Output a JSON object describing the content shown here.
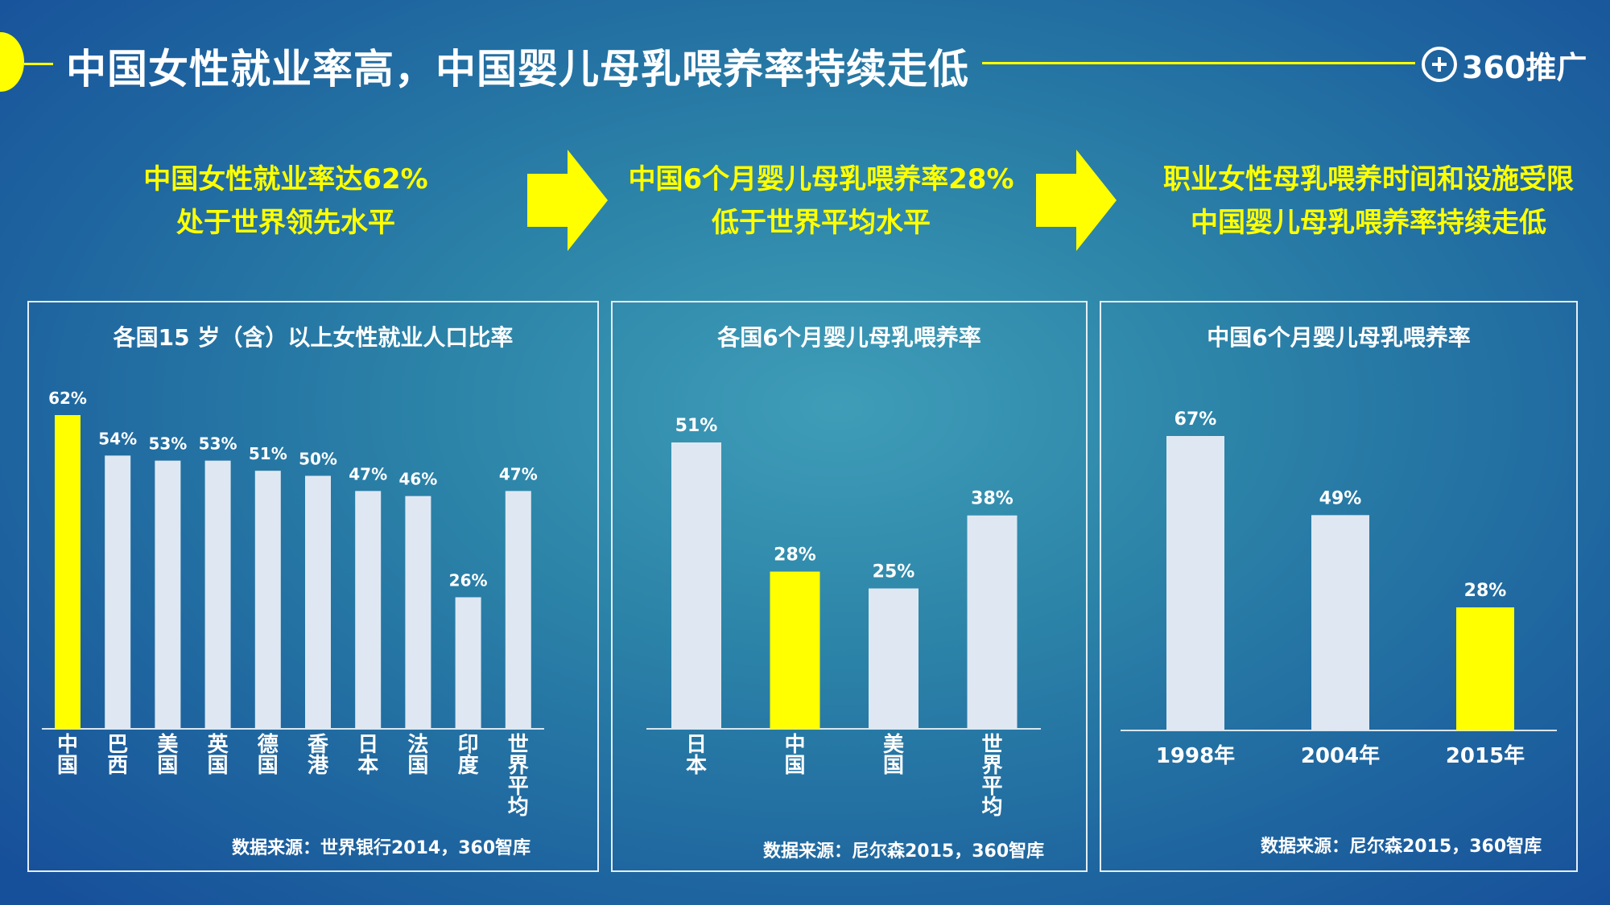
{
  "header": {
    "title": "中国女性就业率高，中国婴儿母乳喂养率持续走低",
    "logo_text": "360推广"
  },
  "highlights": [
    {
      "line1": "中国女性就业率达62%",
      "line2": "处于世界领先水平"
    },
    {
      "line1": "中国6个月婴儿母乳喂养率28%",
      "line2": "低于世界平均水平"
    },
    {
      "line1": "职业女性母乳喂养时间和设施受限",
      "line2": "中国婴儿母乳喂养率持续走低"
    }
  ],
  "colors": {
    "highlight": "#ffff00",
    "bar": "#dfe8f2",
    "accent_bar": "#ffff00",
    "axis": "#d8e6f0"
  },
  "panels": [
    {
      "source": "数据来源：世界银行2014，360智库"
    },
    {
      "source": "数据来源：尼尔森2015，360智库"
    },
    {
      "source": "数据来源：尼尔森2015，360智库"
    }
  ],
  "chart_data": [
    {
      "type": "bar",
      "title": "各国15 岁（含）以上女性就业人口比率",
      "categories": [
        "中国",
        "巴西",
        "美国",
        "英国",
        "德国",
        "香港",
        "日本",
        "法国",
        "印度",
        "世界平均"
      ],
      "values": [
        62,
        54,
        53,
        53,
        51,
        50,
        47,
        46,
        26,
        47
      ],
      "value_labels": [
        "62%",
        "54%",
        "53%",
        "53%",
        "51%",
        "50%",
        "47%",
        "46%",
        "26%",
        "47%"
      ],
      "highlight_index": 0,
      "ylim": [
        0,
        62
      ]
    },
    {
      "type": "bar",
      "title": "各国6个月婴儿母乳喂养率",
      "categories": [
        "日本",
        "中国",
        "美国",
        "世界平均"
      ],
      "values": [
        51,
        28,
        25,
        38
      ],
      "value_labels": [
        "51%",
        "28%",
        "25%",
        "38%"
      ],
      "highlight_index": 1,
      "ylim": [
        0,
        51
      ]
    },
    {
      "type": "bar",
      "title": "中国6个月婴儿母乳喂养率",
      "categories": [
        "1998年",
        "2004年",
        "2015年"
      ],
      "values": [
        67,
        49,
        28
      ],
      "value_labels": [
        "67%",
        "49%",
        "28%"
      ],
      "highlight_index": 2,
      "ylim": [
        0,
        67
      ]
    }
  ]
}
